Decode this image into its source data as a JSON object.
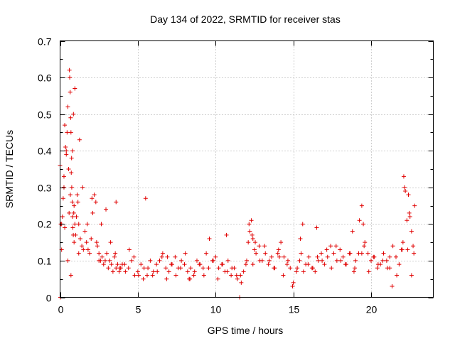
{
  "chart_data": {
    "type": "scatter",
    "title": "Day 134 of 2022, SRMTID for receiver stas",
    "xlabel": "GPS time / hours",
    "ylabel": "SRMTID / TECUs",
    "xlim": [
      0,
      24
    ],
    "ylim": [
      0,
      0.7
    ],
    "xticks": [
      0,
      5,
      10,
      15,
      20
    ],
    "yticks": [
      0,
      0.1,
      0.2,
      0.3,
      0.4,
      0.5,
      0.6,
      0.7
    ],
    "xtick_labels": [
      "0",
      "5",
      "10",
      "15",
      "20"
    ],
    "ytick_labels": [
      "0",
      "0.1",
      "0.2",
      "0.3",
      "0.4",
      "0.5",
      "0.6",
      "0.7"
    ],
    "grid": true,
    "marker": "+",
    "color": "#e00000",
    "series": [
      {
        "name": "SRMTID",
        "x": [
          0.0,
          0.05,
          0.1,
          0.15,
          0.2,
          0.25,
          0.3,
          0.35,
          0.4,
          0.45,
          0.5,
          0.55,
          0.6,
          0.62,
          0.65,
          0.68,
          0.7,
          0.72,
          0.75,
          0.78,
          0.8,
          0.82,
          0.85,
          0.88,
          0.9,
          0.95,
          1.0,
          1.05,
          1.1,
          1.15,
          1.2,
          1.3,
          1.4,
          1.5,
          1.6,
          1.7,
          1.8,
          1.9,
          2.0,
          2.1,
          2.2,
          2.3,
          2.4,
          2.5,
          2.6,
          2.7,
          2.8,
          2.9,
          3.0,
          3.1,
          3.2,
          3.3,
          3.4,
          3.5,
          3.6,
          3.7,
          3.8,
          3.9,
          4.0,
          4.2,
          4.4,
          4.6,
          4.8,
          5.0,
          5.2,
          5.4,
          5.6,
          5.8,
          6.0,
          6.2,
          6.4,
          6.6,
          6.8,
          7.0,
          7.2,
          7.4,
          7.6,
          7.8,
          8.0,
          8.2,
          8.4,
          8.6,
          8.8,
          9.0,
          9.2,
          9.4,
          9.6,
          9.8,
          10.0,
          10.2,
          10.4,
          10.6,
          10.8,
          11.0,
          11.2,
          11.4,
          11.6,
          11.8,
          12.0,
          12.1,
          12.2,
          12.3,
          12.4,
          12.5,
          12.6,
          12.8,
          13.0,
          13.2,
          13.4,
          13.6,
          13.8,
          14.0,
          14.2,
          14.4,
          14.6,
          14.8,
          15.0,
          15.2,
          15.4,
          15.5,
          15.6,
          15.8,
          16.0,
          16.2,
          16.4,
          16.6,
          16.8,
          17.0,
          17.2,
          17.4,
          17.6,
          17.8,
          18.0,
          18.2,
          18.4,
          18.6,
          18.8,
          19.0,
          19.2,
          19.4,
          19.5,
          19.6,
          19.8,
          20.0,
          20.2,
          20.4,
          20.6,
          20.8,
          21.0,
          21.2,
          21.4,
          21.6,
          21.8,
          22.0,
          22.1,
          22.2,
          22.3,
          22.4,
          22.5,
          22.6,
          22.7,
          22.8,
          0.3,
          0.5,
          0.7,
          0.9,
          1.2,
          2.5,
          3.6,
          5.5,
          6.9,
          8.3,
          10.7,
          12.4,
          14.1,
          16.5,
          18.9,
          19.4,
          21.2,
          22.05,
          22.35,
          22.6,
          0.1,
          0.25,
          0.4,
          0.58,
          0.66,
          0.74,
          0.8,
          0.86,
          0.95,
          1.25,
          1.45,
          1.75,
          2.05,
          2.35,
          2.65,
          2.95,
          3.25,
          3.55,
          3.85,
          4.15,
          4.45,
          4.75,
          5.05,
          5.35,
          5.65,
          5.95,
          6.25,
          6.55,
          6.85,
          7.15,
          7.45,
          7.75,
          8.05,
          8.35,
          8.65,
          8.95,
          9.25,
          9.55,
          9.85,
          10.15,
          10.45,
          10.75,
          11.05,
          11.35,
          11.65,
          11.95,
          12.15,
          12.35,
          12.55,
          12.85,
          13.15,
          13.45,
          13.75,
          14.05,
          14.35,
          14.65,
          14.95,
          15.25,
          15.45,
          15.65,
          15.95,
          16.25,
          16.55,
          16.85,
          17.15,
          17.45,
          17.75,
          18.05,
          18.35,
          18.65,
          18.95,
          19.25,
          19.55,
          19.85,
          20.15,
          20.45,
          20.75,
          21.05,
          21.35,
          21.65,
          21.95,
          22.15,
          22.45,
          22.75,
          0.02,
          11.55
        ],
        "y": [
          0.36,
          0.2,
          0.13,
          0.22,
          0.27,
          0.33,
          0.47,
          0.41,
          0.4,
          0.45,
          0.52,
          0.35,
          0.62,
          0.6,
          0.56,
          0.49,
          0.45,
          0.34,
          0.3,
          0.26,
          0.22,
          0.19,
          0.17,
          0.23,
          0.25,
          0.2,
          0.17,
          0.22,
          0.28,
          0.26,
          0.2,
          0.16,
          0.14,
          0.13,
          0.18,
          0.15,
          0.13,
          0.12,
          0.16,
          0.23,
          0.28,
          0.26,
          0.14,
          0.12,
          0.1,
          0.11,
          0.09,
          0.1,
          0.12,
          0.08,
          0.1,
          0.09,
          0.07,
          0.11,
          0.08,
          0.09,
          0.07,
          0.08,
          0.09,
          0.07,
          0.08,
          0.1,
          0.06,
          0.07,
          0.09,
          0.08,
          0.06,
          0.1,
          0.07,
          0.09,
          0.1,
          0.12,
          0.08,
          0.07,
          0.09,
          0.11,
          0.08,
          0.1,
          0.09,
          0.07,
          0.08,
          0.06,
          0.1,
          0.09,
          0.08,
          0.12,
          0.16,
          0.1,
          0.11,
          0.08,
          0.09,
          0.07,
          0.1,
          0.06,
          0.08,
          0.05,
          0.06,
          0.07,
          0.1,
          0.15,
          0.18,
          0.21,
          0.16,
          0.13,
          0.12,
          0.14,
          0.1,
          0.12,
          0.09,
          0.11,
          0.08,
          0.12,
          0.15,
          0.11,
          0.09,
          0.08,
          0.04,
          0.07,
          0.1,
          0.12,
          0.2,
          0.09,
          0.11,
          0.08,
          0.07,
          0.1,
          0.12,
          0.09,
          0.11,
          0.14,
          0.12,
          0.1,
          0.13,
          0.11,
          0.09,
          0.12,
          0.18,
          0.1,
          0.12,
          0.25,
          0.2,
          0.15,
          0.12,
          0.1,
          0.11,
          0.08,
          0.09,
          0.12,
          0.1,
          0.08,
          0.14,
          0.11,
          0.09,
          0.13,
          0.33,
          0.29,
          0.21,
          0.28,
          0.22,
          0.18,
          0.14,
          0.25,
          0.19,
          0.1,
          0.06,
          0.15,
          0.12,
          0.1,
          0.26,
          0.27,
          0.11,
          0.05,
          0.17,
          0.09,
          0.11,
          0.19,
          0.07,
          0.12,
          0.11,
          0.15,
          0.13,
          0.06,
          0.2,
          0.3,
          0.39,
          0.23,
          0.28,
          0.38,
          0.4,
          0.5,
          0.57,
          0.43,
          0.3,
          0.2,
          0.27,
          0.15,
          0.2,
          0.24,
          0.15,
          0.12,
          0.08,
          0.09,
          0.13,
          0.11,
          0.06,
          0.05,
          0.08,
          0.06,
          0.07,
          0.11,
          0.05,
          0.09,
          0.06,
          0.08,
          0.12,
          0.05,
          0.07,
          0.09,
          0.06,
          0.08,
          0.1,
          0.05,
          0.09,
          0.07,
          0.08,
          0.06,
          0.04,
          0.09,
          0.2,
          0.17,
          0.15,
          0.1,
          0.14,
          0.1,
          0.08,
          0.13,
          0.06,
          0.1,
          0.03,
          0.08,
          0.16,
          0.07,
          0.09,
          0.08,
          0.11,
          0.1,
          0.13,
          0.08,
          0.14,
          0.1,
          0.09,
          0.12,
          0.08,
          0.21,
          0.14,
          0.07,
          0.11,
          0.09,
          0.1,
          0.08,
          0.03,
          0.06,
          0.13,
          0.3,
          0.23,
          0.12,
          0.0,
          0.0
        ]
      }
    ]
  }
}
